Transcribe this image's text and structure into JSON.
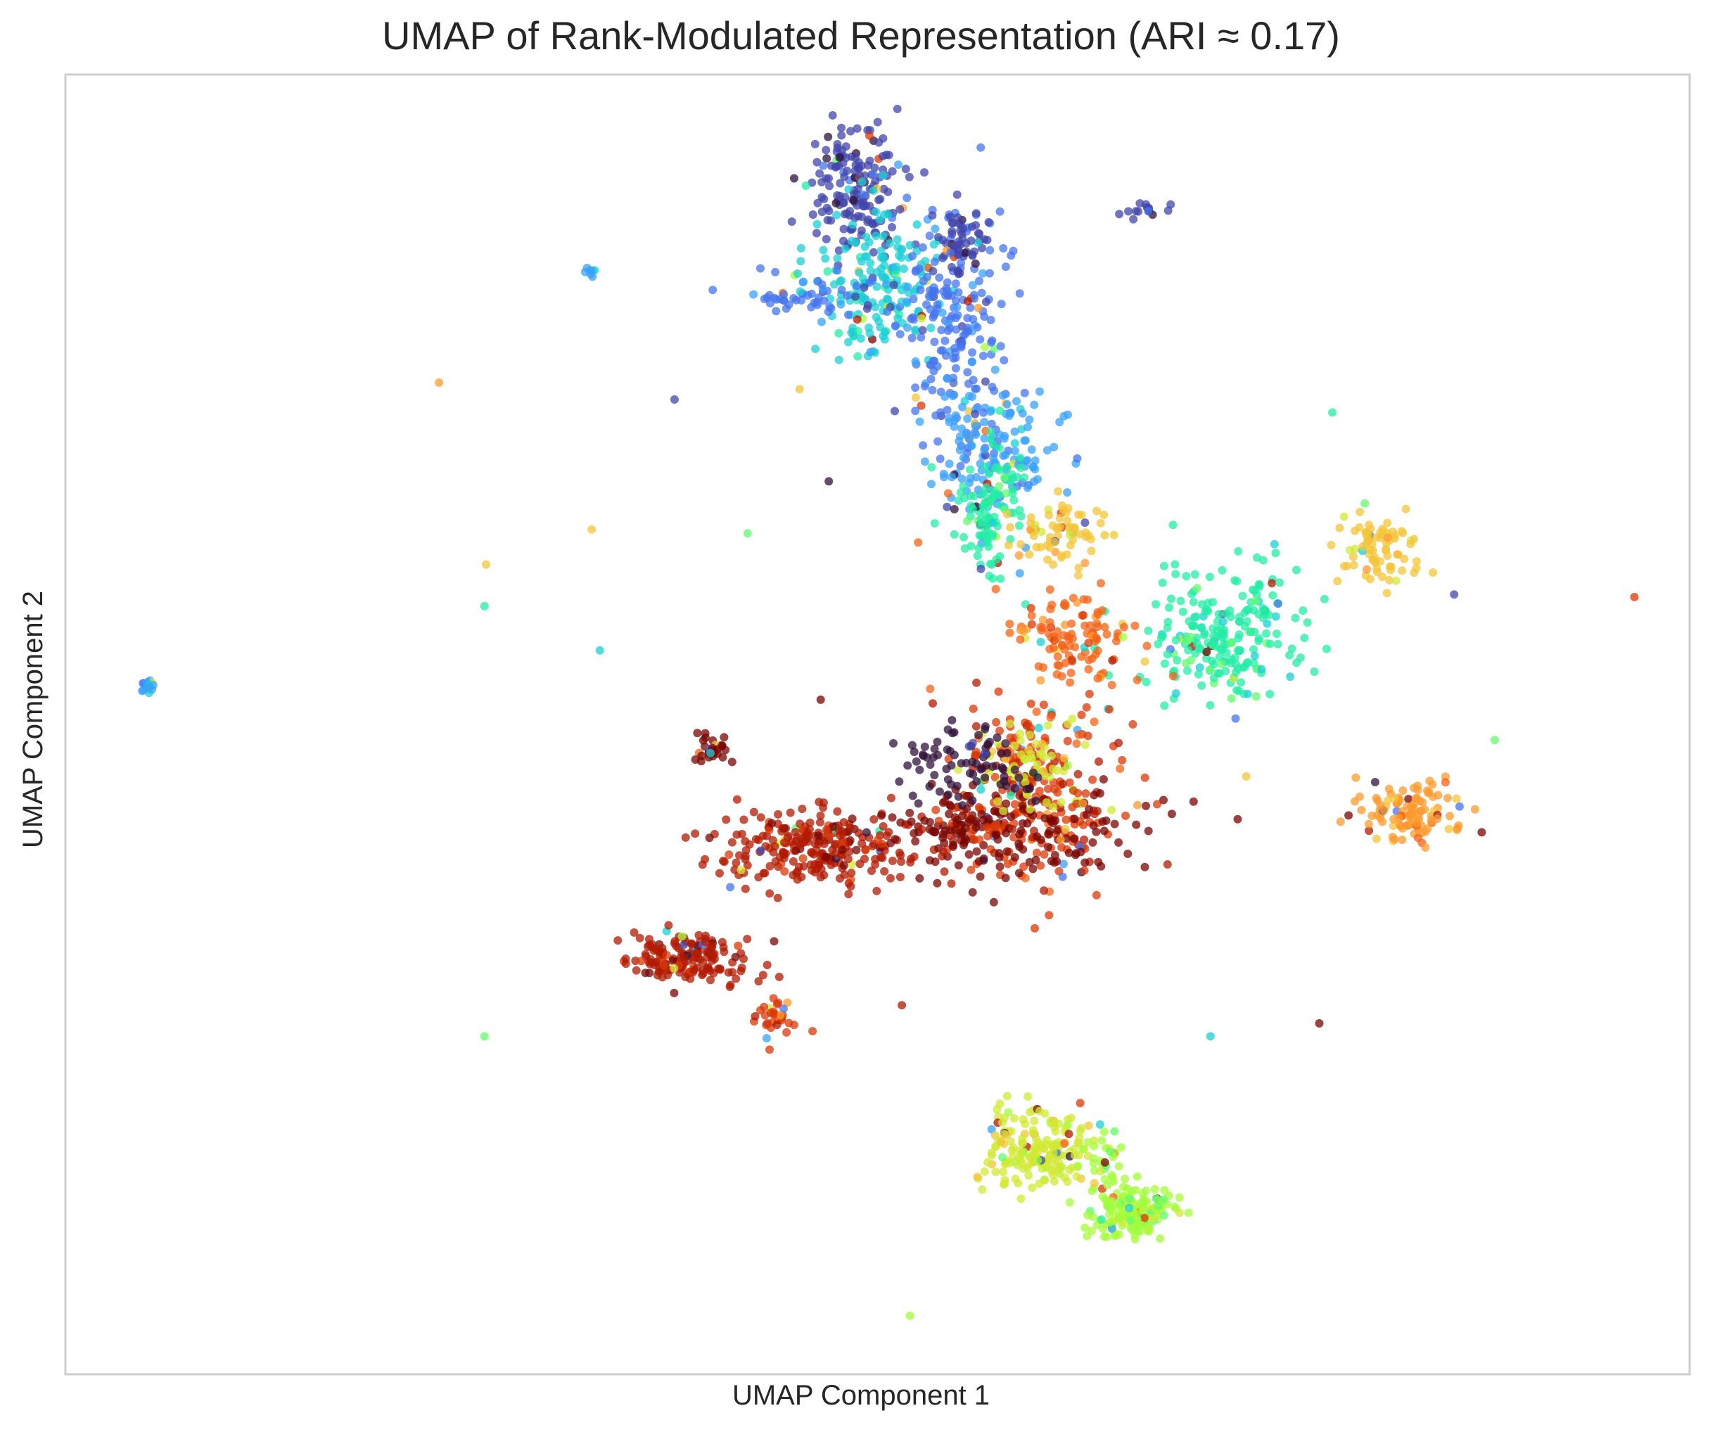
{
  "chart_data": {
    "type": "scatter",
    "title": "UMAP of Rank-Modulated Representation (ARI ≈ 0.17)",
    "xlabel": "UMAP Component 1",
    "ylabel": "UMAP Component 2",
    "xlim": [
      0,
      100
    ],
    "ylim": [
      0,
      100
    ],
    "grid": false,
    "legend": "none",
    "point_opacity": 0.75,
    "colormap": [
      "#30123b",
      "#4145ab",
      "#4675ed",
      "#39a2fc",
      "#1bcfd4",
      "#24eca6",
      "#61fc6c",
      "#a4fc3b",
      "#d1e834",
      "#f3c63a",
      "#fe9b2d",
      "#f36315",
      "#d93806",
      "#b11901",
      "#7a0402"
    ],
    "clusters": [
      {
        "label": 1,
        "x": 48.5,
        "y": 91.0,
        "sx": 1.4,
        "sy": 2.5,
        "n": 170
      },
      {
        "label": 4,
        "x": 50.0,
        "y": 84.0,
        "sx": 2.0,
        "sy": 3.0,
        "n": 180
      },
      {
        "label": 2,
        "x": 54.8,
        "y": 80.0,
        "sx": 1.6,
        "sy": 5.0,
        "n": 210
      },
      {
        "label": 1,
        "x": 55.2,
        "y": 87.2,
        "sx": 0.9,
        "sy": 1.2,
        "n": 60
      },
      {
        "label": 3,
        "x": 57.3,
        "y": 71.0,
        "sx": 1.8,
        "sy": 3.0,
        "n": 140
      },
      {
        "label": 5,
        "x": 56.8,
        "y": 66.5,
        "sx": 1.2,
        "sy": 2.5,
        "n": 110
      },
      {
        "label": 9,
        "x": 61.5,
        "y": 64.8,
        "sx": 1.4,
        "sy": 1.2,
        "n": 70
      },
      {
        "label": 2,
        "x": 46.0,
        "y": 83.0,
        "sx": 2.0,
        "sy": 1.0,
        "n": 50
      },
      {
        "label": 5,
        "x": 71.0,
        "y": 56.8,
        "sx": 2.5,
        "sy": 2.5,
        "n": 230
      },
      {
        "label": 9,
        "x": 80.8,
        "y": 63.5,
        "sx": 1.2,
        "sy": 1.5,
        "n": 80
      },
      {
        "label": 11,
        "x": 62.0,
        "y": 56.5,
        "sx": 1.8,
        "sy": 1.8,
        "n": 110
      },
      {
        "label": 10,
        "x": 82.7,
        "y": 43.5,
        "sx": 1.6,
        "sy": 1.3,
        "n": 110
      },
      {
        "label": 13,
        "x": 46.5,
        "y": 40.5,
        "sx": 3.0,
        "sy": 1.5,
        "n": 260
      },
      {
        "label": 14,
        "x": 54.5,
        "y": 42.0,
        "sx": 2.0,
        "sy": 1.2,
        "n": 60
      },
      {
        "label": 12,
        "x": 59.5,
        "y": 45.0,
        "sx": 2.5,
        "sy": 3.5,
        "n": 260
      },
      {
        "label": 14,
        "x": 60.0,
        "y": 41.5,
        "sx": 4.0,
        "sy": 2.0,
        "n": 140
      },
      {
        "label": 8,
        "x": 59.0,
        "y": 47.0,
        "sx": 1.6,
        "sy": 1.6,
        "n": 60
      },
      {
        "label": 13,
        "x": 38.5,
        "y": 32.0,
        "sx": 2.0,
        "sy": 1.0,
        "n": 160
      },
      {
        "label": 12,
        "x": 43.5,
        "y": 27.5,
        "sx": 0.6,
        "sy": 0.8,
        "n": 30
      },
      {
        "label": 14,
        "x": 39.8,
        "y": 48.0,
        "sx": 0.5,
        "sy": 0.5,
        "n": 30
      },
      {
        "label": 8,
        "x": 60.0,
        "y": 17.5,
        "sx": 1.8,
        "sy": 1.6,
        "n": 180
      },
      {
        "label": 7,
        "x": 65.7,
        "y": 12.5,
        "sx": 1.5,
        "sy": 1.0,
        "n": 160
      },
      {
        "label": 7,
        "x": 64.0,
        "y": 16.5,
        "sx": 0.6,
        "sy": 1.5,
        "n": 30
      },
      {
        "label": 3,
        "x": 5.0,
        "y": 53.0,
        "sx": 0.2,
        "sy": 0.3,
        "n": 20
      },
      {
        "label": 1,
        "x": 66.5,
        "y": 89.5,
        "sx": 0.8,
        "sy": 0.3,
        "n": 15
      },
      {
        "label": 3,
        "x": 32.3,
        "y": 84.8,
        "sx": 0.2,
        "sy": 0.2,
        "n": 8
      },
      {
        "label": 0,
        "x": 55.3,
        "y": 47.0,
        "sx": 2.5,
        "sy": 1.5,
        "n": 80
      }
    ],
    "outliers": [
      {
        "x": 23.0,
        "y": 76.3,
        "label": 10
      },
      {
        "x": 37.5,
        "y": 75.0,
        "label": 1
      },
      {
        "x": 45.2,
        "y": 75.8,
        "label": 9
      },
      {
        "x": 78.0,
        "y": 74.0,
        "label": 5
      },
      {
        "x": 47.0,
        "y": 68.7,
        "label": 0
      },
      {
        "x": 25.9,
        "y": 62.3,
        "label": 9
      },
      {
        "x": 32.4,
        "y": 65.0,
        "label": 9
      },
      {
        "x": 42.0,
        "y": 64.7,
        "label": 6
      },
      {
        "x": 52.5,
        "y": 64.0,
        "label": 11
      },
      {
        "x": 25.8,
        "y": 59.1,
        "label": 5
      },
      {
        "x": 32.9,
        "y": 55.7,
        "label": 4
      },
      {
        "x": 85.5,
        "y": 60.0,
        "label": 1
      },
      {
        "x": 96.6,
        "y": 59.8,
        "label": 12
      },
      {
        "x": 46.5,
        "y": 51.9,
        "label": 14
      },
      {
        "x": 72.7,
        "y": 46.0,
        "label": 9
      },
      {
        "x": 88.0,
        "y": 48.8,
        "label": 6
      },
      {
        "x": 87.2,
        "y": 41.7,
        "label": 14
      },
      {
        "x": 79.0,
        "y": 43.0,
        "label": 14
      },
      {
        "x": 25.8,
        "y": 26.0,
        "label": 6
      },
      {
        "x": 51.5,
        "y": 28.4,
        "label": 13
      },
      {
        "x": 70.5,
        "y": 26.0,
        "label": 4
      },
      {
        "x": 77.2,
        "y": 27.0,
        "label": 14
      },
      {
        "x": 46.0,
        "y": 26.4,
        "label": 12
      },
      {
        "x": 52.0,
        "y": 4.5,
        "label": 7
      },
      {
        "x": 64.0,
        "y": 16.3,
        "label": 14
      },
      {
        "x": 80.0,
        "y": 67.0,
        "label": 6
      }
    ]
  }
}
